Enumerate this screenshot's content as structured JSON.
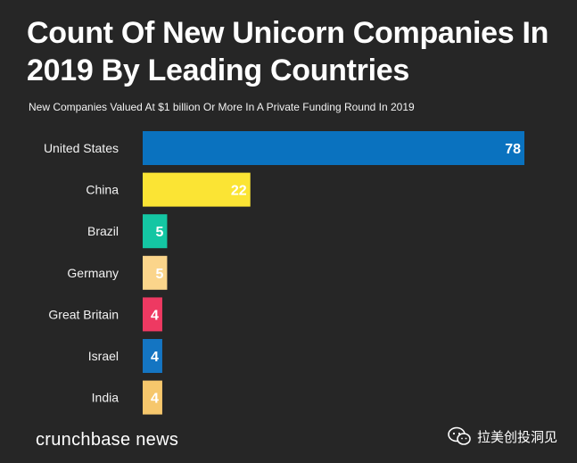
{
  "title": "Count Of New Unicorn Companies In 2019 By Leading Countries",
  "subtitle": "New Companies Valued At $1 billion Or More In A Private Funding Round In 2019",
  "footer": {
    "brand": "crunchbase news"
  },
  "watermark": {
    "text": "拉美创投洞见",
    "icon": "wechat-icon"
  },
  "chart_data": {
    "type": "bar",
    "orientation": "horizontal",
    "title": "Count Of New Unicorn Companies In 2019 By Leading Countries",
    "subtitle": "New Companies Valued At $1 billion Or More In A Private Funding Round In 2019",
    "xlabel": "",
    "ylabel": "",
    "categories": [
      "United States",
      "China",
      "Brazil",
      "Germany",
      "Great Britain",
      "Israel",
      "India"
    ],
    "values": [
      78,
      22,
      5,
      5,
      4,
      4,
      4
    ],
    "colors": [
      "#0a72bf",
      "#fbe434",
      "#14c6a3",
      "#fbd58b",
      "#ee3962",
      "#1475c2",
      "#f6c76c"
    ],
    "xlim": [
      0,
      78
    ],
    "grid": false,
    "legend": "none"
  }
}
